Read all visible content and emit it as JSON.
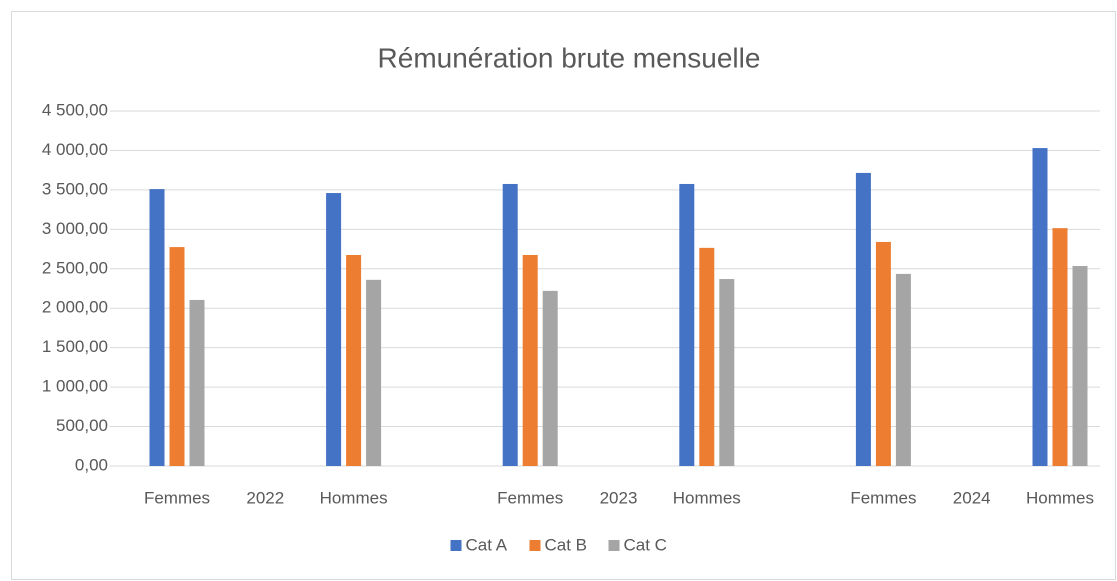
{
  "chart_data": {
    "type": "bar",
    "title": "Rémunération brute mensuelle",
    "categories": [
      "Femmes",
      "Hommes",
      "Femmes",
      "Hommes",
      "Femmes",
      "Hommes"
    ],
    "category_groups": [
      "2022",
      "2023",
      "2024"
    ],
    "series": [
      {
        "name": "Cat A",
        "color": "#4472c4",
        "values": [
          3510,
          3460,
          3575,
          3575,
          3715,
          4030
        ]
      },
      {
        "name": "Cat B",
        "color": "#ed7d31",
        "values": [
          2775,
          2675,
          2675,
          2765,
          2840,
          3015
        ]
      },
      {
        "name": "Cat C",
        "color": "#a5a5a5",
        "values": [
          2105,
          2360,
          2220,
          2370,
          2435,
          2535
        ]
      }
    ],
    "ylim": [
      0,
      4500
    ],
    "yticks": [
      {
        "value": 0,
        "label": "0,00"
      },
      {
        "value": 500,
        "label": "500,00"
      },
      {
        "value": 1000,
        "label": "1 000,00"
      },
      {
        "value": 1500,
        "label": "1 500,00"
      },
      {
        "value": 2000,
        "label": "2 000,00"
      },
      {
        "value": 2500,
        "label": "2 500,00"
      },
      {
        "value": 3000,
        "label": "3 000,00"
      },
      {
        "value": 3500,
        "label": "3 500,00"
      },
      {
        "value": 4000,
        "label": "4 000,00"
      },
      {
        "value": 4500,
        "label": "4 500,00"
      }
    ],
    "grid": true,
    "legend": "bottom"
  }
}
